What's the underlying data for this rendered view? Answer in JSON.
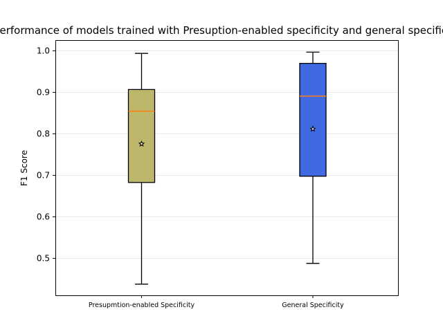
{
  "chart_data": {
    "type": "box",
    "title": "Performance of models trained with Presuption-enabled specificity and general specificity",
    "xlabel": "",
    "ylabel": "F1 Score",
    "ylim": [
      0.41,
      1.025
    ],
    "yticks": [
      0.5,
      0.6,
      0.7,
      0.8,
      0.9,
      1.0
    ],
    "ytick_labels": [
      "0.5",
      "0.6",
      "0.7",
      "0.8",
      "0.9",
      "1.0"
    ],
    "grid": "horizontal",
    "categories": [
      "Presupmtion-enabled Specificity",
      "General Specificity"
    ],
    "boxes": [
      {
        "category": "Presupmtion-enabled Specificity",
        "whisker_low": 0.437,
        "q1": 0.682,
        "median": 0.854,
        "q3": 0.906,
        "whisker_high": 0.993,
        "mean": 0.775,
        "color": "#bdb76b"
      },
      {
        "category": "General Specificity",
        "whisker_low": 0.487,
        "q1": 0.697,
        "median": 0.89,
        "q3": 0.969,
        "whisker_high": 0.996,
        "mean": 0.811,
        "color": "#4169e1"
      }
    ],
    "median_color": "#ff7f0e"
  }
}
